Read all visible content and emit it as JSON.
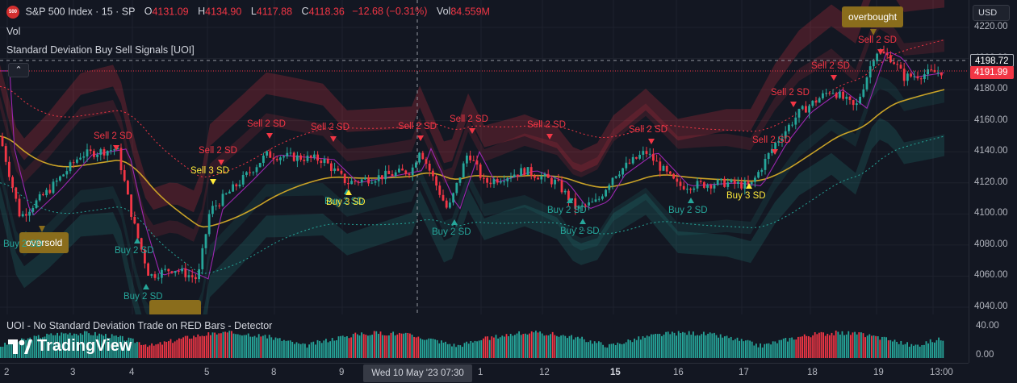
{
  "header": {
    "symbol_badge": "500",
    "title": "S&P 500 Index · 15 · SP",
    "open_label": "O",
    "open": "4131.09",
    "high_label": "H",
    "high": "4134.90",
    "low_label": "L",
    "low": "4117.88",
    "close_label": "C",
    "close": "4118.36",
    "change": "−12.68 (−0.31%)",
    "vol_label": "Vol",
    "vol": "84.559M"
  },
  "legend": {
    "vol": "Vol",
    "indicator": "Standard Deviation Buy Sell Signals [UOI]",
    "collapse_icon": "chevron-up-icon"
  },
  "price_axis": {
    "currency": "USD",
    "ticks": [
      "4220.00",
      "4200.00",
      "4180.00",
      "4160.00",
      "4140.00",
      "4120.00",
      "4100.00",
      "4080.00",
      "4060.00",
      "4040.00"
    ],
    "crosshair_price": "4198.72",
    "last_price": "4191.99",
    "indicator_ticks": [
      "40.00",
      "0.00"
    ]
  },
  "time_axis": {
    "ticks": [
      "2",
      "3",
      "4",
      "5",
      "8",
      "9",
      "1",
      "12",
      "15",
      "16",
      "17",
      "18",
      "19",
      "13:00"
    ],
    "crosshair": "Wed 10 May '23   07:30"
  },
  "signals": {
    "sell_2sd": "Sell 2 SD",
    "buy_2sd": "Buy 2 SD",
    "buy_3sd": "Buy 3 SD",
    "sell_3sd": "Sell 3 SD",
    "overbought": "overbought",
    "oversold": "oversold",
    "labels": [
      {
        "text": "Sell 2 SD",
        "kind": "sell"
      },
      {
        "text": "Sell 2 SD",
        "kind": "sell"
      },
      {
        "text": "Sell 2 SD",
        "kind": "sell"
      },
      {
        "text": "Sell 2 SD",
        "kind": "sell"
      },
      {
        "text": "Sell 2 SD",
        "kind": "sell"
      },
      {
        "text": "Sell 2 SD",
        "kind": "sell"
      },
      {
        "text": "Sell 2 SD",
        "kind": "sell"
      },
      {
        "text": "Sell 2 SD",
        "kind": "sell"
      },
      {
        "text": "Sell 2 SD",
        "kind": "sell"
      },
      {
        "text": "Sell 2 SD",
        "kind": "sell"
      },
      {
        "text": "Sell 2 SD",
        "kind": "sell"
      },
      {
        "text": "Sell 2 SD",
        "kind": "sell"
      },
      {
        "text": "Sell 3 SD",
        "kind": "buy3"
      },
      {
        "text": "Buy 2 SD",
        "kind": "buy"
      },
      {
        "text": "Buy 2 SD",
        "kind": "buy"
      },
      {
        "text": "Buy 2 SD",
        "kind": "buy"
      },
      {
        "text": "Buy 2 SD",
        "kind": "buy"
      },
      {
        "text": "Buy 2 SD",
        "kind": "buy"
      },
      {
        "text": "Buy 2 SD",
        "kind": "buy"
      },
      {
        "text": "Buy 2 SD",
        "kind": "buy"
      },
      {
        "text": "Buy 2 SD",
        "kind": "buy"
      },
      {
        "text": "Buy 3 SD",
        "kind": "buy3"
      },
      {
        "text": "Buy 3 SD",
        "kind": "buy3"
      }
    ]
  },
  "indicator_pane": {
    "title": "UOI - No Standard Deviation Trade on RED Bars - Detector"
  },
  "branding": {
    "logo_text": "TradingView"
  },
  "colors": {
    "background": "#131722",
    "up": "#26a69a",
    "down": "#f23645",
    "signal_yellow": "#ffeb3b",
    "callout": "#8a6d1c"
  }
}
